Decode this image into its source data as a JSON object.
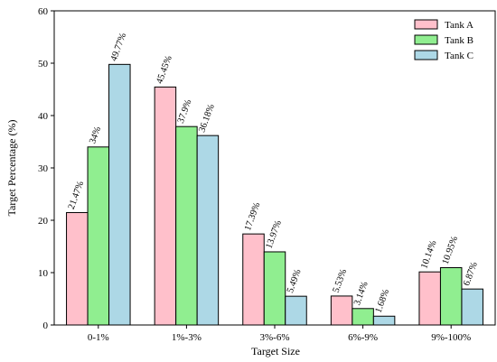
{
  "chart_data": {
    "type": "bar",
    "title": "",
    "xlabel": "Target Size",
    "ylabel": "Target Percentage (%)",
    "ylim": [
      0,
      60
    ],
    "yticks": [
      0,
      10,
      20,
      30,
      40,
      50,
      60
    ],
    "grid": false,
    "legend_position": "top-right",
    "categories": [
      "0-1%",
      "1%-3%",
      "3%-6%",
      "6%-9%",
      "9%-100%"
    ],
    "series": [
      {
        "name": "Tank A",
        "color": "#FFC0CB",
        "values": [
          21.47,
          45.45,
          17.39,
          5.53,
          10.14
        ],
        "labels": [
          "21.47%",
          "45.45%",
          "17.39%",
          "5.53%",
          "10.14%"
        ]
      },
      {
        "name": "Tank B",
        "color": "#90EE90",
        "values": [
          34,
          37.9,
          13.97,
          3.14,
          10.95
        ],
        "labels": [
          "34%",
          "37.9%",
          "13.97%",
          "3.14%",
          "10.95%"
        ]
      },
      {
        "name": "Tank C",
        "color": "#ADD8E6",
        "values": [
          49.77,
          36.18,
          5.49,
          1.68,
          6.87
        ],
        "labels": [
          "49.77%",
          "36.18%",
          "5.49%",
          "1.68%",
          "6.87%"
        ]
      }
    ]
  }
}
